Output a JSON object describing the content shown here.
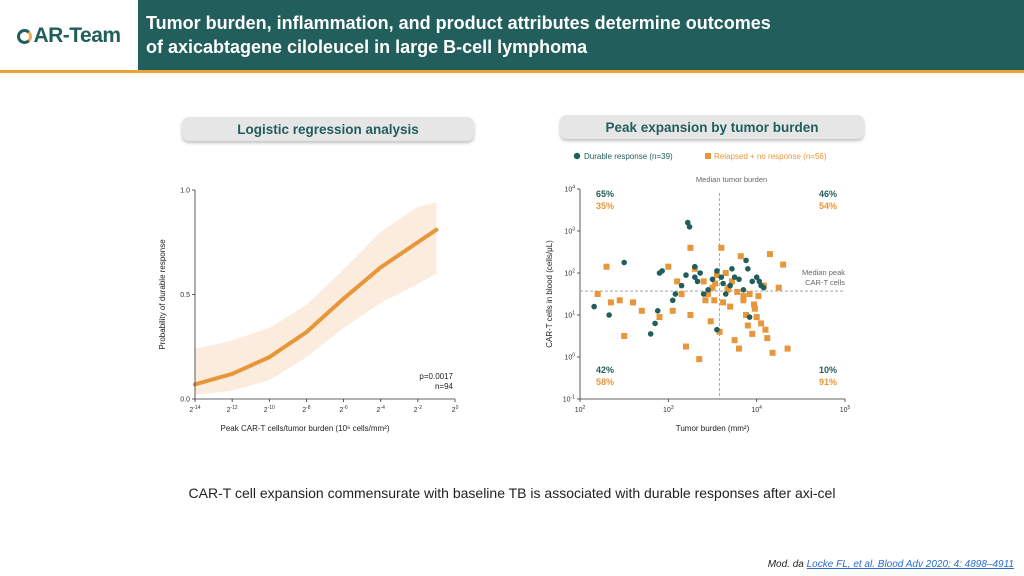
{
  "header": {
    "logo_text": "AR-Team",
    "title_line1": "Tumor burden, inflammation, and product attributes determine outcomes",
    "title_line2": "of axicabtagene ciloleucel in large B-cell lymphoma"
  },
  "colors": {
    "header_bg": "#215e5c",
    "accent": "#e8a235",
    "teal": "#215e5c",
    "orange": "#e8963a"
  },
  "caption": "CAR-T cell expansion commensurate with baseline TB is associated with durable responses after axi-cel",
  "reference": {
    "prefix": "Mod. da ",
    "link_text": "Locke FL, et al. Blood Adv 2020; 4: 4898–4911"
  },
  "chart_data": [
    {
      "type": "line",
      "panel_title": "Logistic regression analysis",
      "xlabel": "Peak CAR-T cells/tumor burden (10⁶ cells/mm²)",
      "ylabel": "Probability of durable response",
      "x_ticks": [
        {
          "base": "2",
          "exp": "-14"
        },
        {
          "base": "2",
          "exp": "-12"
        },
        {
          "base": "2",
          "exp": "-10"
        },
        {
          "base": "2",
          "exp": "-8"
        },
        {
          "base": "2",
          "exp": "-6"
        },
        {
          "base": "2",
          "exp": "-4"
        },
        {
          "base": "2",
          "exp": "-2"
        },
        {
          "base": "2",
          "exp": "0"
        }
      ],
      "xlim_log2": [
        -14,
        0
      ],
      "y_ticks": [
        "0.0",
        "0.5",
        "1.0"
      ],
      "ylim": [
        0,
        1
      ],
      "annotation": [
        "p=0.0017",
        "n=94"
      ],
      "series": [
        {
          "x_log2": [
            -14,
            -12,
            -10,
            -8,
            -6,
            -4,
            -2,
            -1
          ],
          "y": [
            0.07,
            0.12,
            0.2,
            0.32,
            0.48,
            0.63,
            0.75,
            0.81
          ],
          "ci_low": [
            0.02,
            0.04,
            0.09,
            0.2,
            0.34,
            0.46,
            0.55,
            0.6
          ],
          "ci_high": [
            0.24,
            0.28,
            0.34,
            0.45,
            0.62,
            0.8,
            0.92,
            0.94
          ]
        }
      ]
    },
    {
      "type": "scatter",
      "panel_title": "Peak expansion by tumor burden",
      "xlabel": "Tumor burden (mm²)",
      "ylabel": "CAR-T cells in blood (cells/μL)",
      "x_scale": "log",
      "y_scale": "log",
      "xlim_log10": [
        2,
        5
      ],
      "ylim_log10": [
        -1,
        4
      ],
      "x_ticks": [
        {
          "base": "10",
          "exp": "2"
        },
        {
          "base": "10",
          "exp": "3"
        },
        {
          "base": "10",
          "exp": "4"
        },
        {
          "base": "10",
          "exp": "5"
        }
      ],
      "y_ticks": [
        {
          "base": "10",
          "exp": "-1"
        },
        {
          "base": "10",
          "exp": "0"
        },
        {
          "base": "10",
          "exp": "1"
        },
        {
          "base": "10",
          "exp": "2"
        },
        {
          "base": "10",
          "exp": "3"
        },
        {
          "base": "10",
          "exp": "4"
        }
      ],
      "legend_position": "top",
      "median_x_label": "Median tumor burden",
      "median_y_label": [
        "Median peak",
        "CAR-T cells"
      ],
      "median_x_log10": 3.58,
      "median_y_log10": 1.57,
      "quadrants": {
        "top_left": [
          "65%",
          "35%"
        ],
        "top_right": [
          "46%",
          "54%"
        ],
        "bottom_left": [
          "42%",
          "58%"
        ],
        "bottom_right": [
          "10%",
          "91%"
        ]
      },
      "series": [
        {
          "name": "Durable response (n=39)",
          "marker": "circle",
          "points": [
            [
              2.16,
              1.2
            ],
            [
              2.33,
              1.0
            ],
            [
              2.5,
              2.25
            ],
            [
              2.8,
              0.55
            ],
            [
              2.85,
              0.8
            ],
            [
              2.88,
              1.1
            ],
            [
              2.9,
              2.0
            ],
            [
              2.93,
              2.05
            ],
            [
              3.05,
              1.35
            ],
            [
              3.08,
              1.5
            ],
            [
              3.15,
              1.7
            ],
            [
              3.2,
              1.95
            ],
            [
              3.22,
              3.2
            ],
            [
              3.24,
              3.1
            ],
            [
              3.3,
              2.15
            ],
            [
              3.33,
              1.8
            ],
            [
              3.36,
              2.0
            ],
            [
              3.4,
              1.5
            ],
            [
              3.45,
              1.6
            ],
            [
              3.5,
              1.85
            ],
            [
              3.55,
              0.65
            ],
            [
              3.6,
              1.9
            ],
            [
              3.65,
              1.5
            ],
            [
              3.7,
              1.7
            ],
            [
              3.72,
              2.1
            ],
            [
              3.75,
              1.9
            ],
            [
              3.8,
              1.85
            ],
            [
              3.85,
              1.6
            ],
            [
              3.88,
              2.3
            ],
            [
              3.9,
              2.1
            ],
            [
              3.95,
              1.8
            ],
            [
              4.0,
              1.9
            ],
            [
              4.03,
              1.8
            ],
            [
              4.05,
              1.7
            ],
            [
              3.55,
              2.05
            ],
            [
              3.62,
              1.75
            ],
            [
              3.3,
              1.9
            ],
            [
              3.92,
              0.95
            ],
            [
              4.08,
              1.65
            ]
          ]
        },
        {
          "name": "Relapsed + no response (n=56)",
          "marker": "square",
          "points": [
            [
              2.2,
              1.5
            ],
            [
              2.35,
              1.3
            ],
            [
              2.45,
              1.35
            ],
            [
              2.5,
              0.5
            ],
            [
              2.6,
              1.3
            ],
            [
              2.7,
              1.1
            ],
            [
              2.9,
              0.95
            ],
            [
              3.0,
              2.15
            ],
            [
              3.05,
              1.1
            ],
            [
              3.15,
              1.5
            ],
            [
              3.2,
              0.25
            ],
            [
              3.25,
              1.0
            ],
            [
              3.3,
              2.1
            ],
            [
              3.35,
              -0.05
            ],
            [
              3.4,
              1.8
            ],
            [
              3.45,
              1.5
            ],
            [
              3.48,
              0.85
            ],
            [
              3.52,
              1.35
            ],
            [
              3.55,
              1.95
            ],
            [
              3.58,
              0.6
            ],
            [
              3.6,
              2.6
            ],
            [
              3.62,
              1.3
            ],
            [
              3.65,
              2.0
            ],
            [
              3.68,
              1.65
            ],
            [
              3.7,
              1.2
            ],
            [
              3.72,
              1.8
            ],
            [
              3.75,
              0.4
            ],
            [
              3.78,
              1.55
            ],
            [
              3.8,
              0.2
            ],
            [
              3.82,
              2.4
            ],
            [
              3.85,
              1.35
            ],
            [
              3.88,
              1.0
            ],
            [
              3.9,
              0.75
            ],
            [
              3.92,
              1.5
            ],
            [
              3.95,
              0.55
            ],
            [
              3.98,
              1.15
            ],
            [
              4.0,
              0.95
            ],
            [
              4.02,
              1.45
            ],
            [
              4.05,
              0.8
            ],
            [
              4.08,
              1.7
            ],
            [
              4.1,
              0.65
            ],
            [
              4.12,
              0.45
            ],
            [
              4.15,
              2.45
            ],
            [
              4.18,
              0.1
            ],
            [
              4.25,
              1.65
            ],
            [
              4.3,
              2.2
            ],
            [
              4.35,
              0.2
            ],
            [
              3.42,
              1.35
            ],
            [
              3.53,
              1.75
            ],
            [
              3.67,
              1.6
            ],
            [
              3.25,
              2.6
            ],
            [
              2.3,
              2.15
            ],
            [
              3.1,
              1.8
            ],
            [
              3.85,
              1.45
            ],
            [
              3.5,
              1.65
            ],
            [
              3.97,
              1.25
            ]
          ]
        }
      ]
    }
  ]
}
